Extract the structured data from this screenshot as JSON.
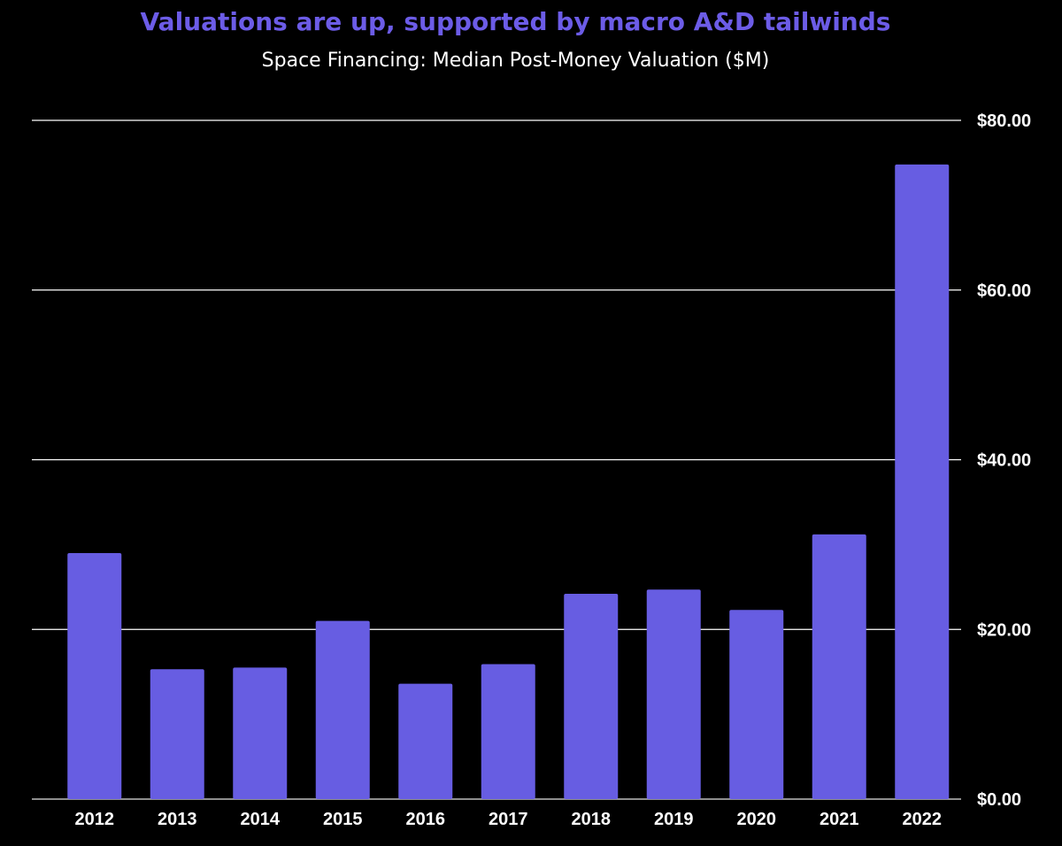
{
  "chart_data": {
    "type": "bar",
    "title": "Valuations are up, supported by macro A&D tailwinds",
    "subtitle": "Space Financing: Median Post-Money Valuation ($M)",
    "categories": [
      "2012",
      "2013",
      "2014",
      "2015",
      "2016",
      "2017",
      "2018",
      "2019",
      "2020",
      "2021",
      "2022"
    ],
    "values": [
      29.0,
      15.3,
      15.5,
      21.0,
      13.6,
      15.9,
      24.2,
      24.7,
      22.3,
      31.2,
      74.8
    ],
    "y_ticks": [
      0,
      20,
      40,
      60,
      80
    ],
    "y_tick_labels": [
      "$0.00",
      "$20.00",
      "$40.00",
      "$60.00",
      "$80.00"
    ],
    "ylim": [
      0,
      80
    ],
    "y_axis_position": "right",
    "xlabel": "",
    "ylabel": "",
    "grid": true,
    "legend": "none",
    "colors": {
      "bar": "#675de2",
      "title": "#6c5ce7",
      "gridline": "#ffffff",
      "background": "#000000",
      "text": "#ffffff"
    }
  }
}
